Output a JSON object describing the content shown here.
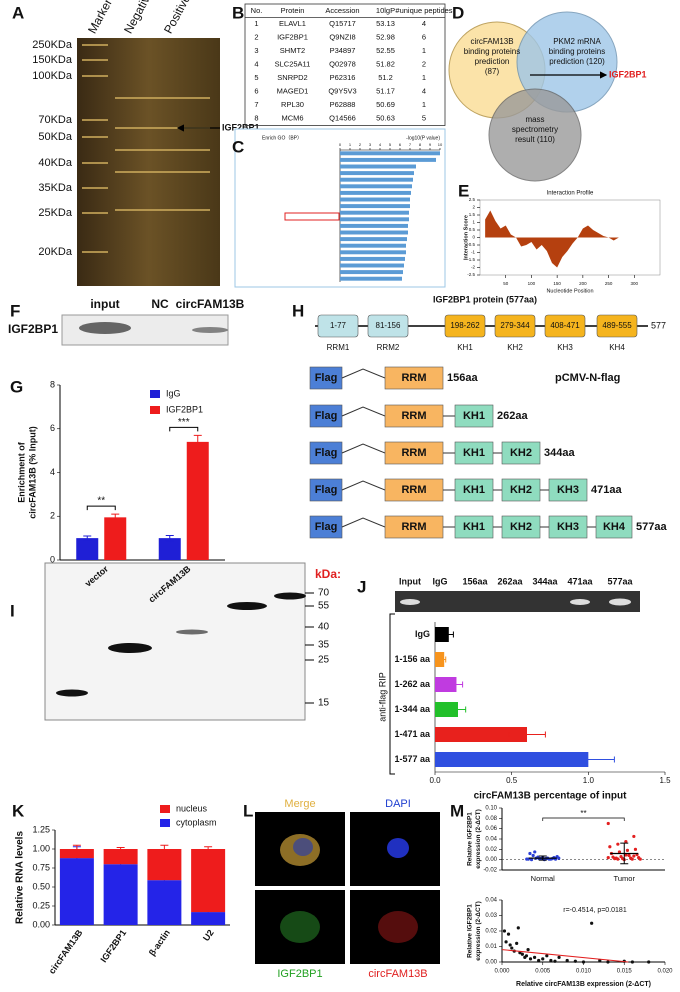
{
  "panel_labels": [
    "A",
    "B",
    "C",
    "D",
    "E",
    "F",
    "G",
    "H",
    "I",
    "J",
    "K",
    "L",
    "M"
  ],
  "gel_a": {
    "lanes": [
      "Marker",
      "Negative",
      "Positive"
    ],
    "markers": [
      "250KDa",
      "150KDa",
      "100KDa",
      "70KDa",
      "50KDa",
      "40KDa",
      "35KDa",
      "25KDa",
      "20KDa"
    ],
    "arrow_label": "IGF2BP1"
  },
  "table_b": {
    "header": [
      "No.",
      "Protein",
      "Accession",
      "10lgP",
      "#unique peptides"
    ],
    "rows": [
      [
        "1",
        "ELAVL1",
        "Q15717",
        "53.13",
        "4"
      ],
      [
        "2",
        "IGF2BP1",
        "Q9NZI8",
        "52.98",
        "6"
      ],
      [
        "3",
        "SHMT2",
        "P34897",
        "52.55",
        "1"
      ],
      [
        "4",
        "SLC25A11",
        "Q02978",
        "51.82",
        "2"
      ],
      [
        "5",
        "SNRPD2",
        "P62316",
        "51.2",
        "1"
      ],
      [
        "6",
        "MAGED1",
        "Q9Y5V3",
        "51.17",
        "4"
      ],
      [
        "7",
        "RPL30",
        "P62888",
        "50.69",
        "1"
      ],
      [
        "8",
        "MCM6",
        "Q14566",
        "50.63",
        "5"
      ]
    ]
  },
  "venn_d": {
    "sets": [
      [
        "circFAM13B",
        "binding proteins",
        "prediction",
        "(87)"
      ],
      [
        "PKM2 mRNA",
        "binding proteins",
        "prediction (120)"
      ],
      [
        "mass",
        "spectrometry",
        "result (110)"
      ]
    ],
    "result": "IGF2BP1"
  },
  "blot_f": {
    "lanes": [
      "input",
      "NC",
      "circFAM13B"
    ],
    "row_label": "IGF2BP1"
  },
  "domains_h": {
    "title": "IGF2BP1 protein (577aa)",
    "domains": [
      {
        "range": "1-77",
        "name": "RRM1"
      },
      {
        "range": "81-156",
        "name": "RRM2"
      },
      {
        "range": "198-262",
        "name": "KH1"
      },
      {
        "range": "279-344",
        "name": "KH2"
      },
      {
        "range": "408-471",
        "name": "KH3"
      },
      {
        "range": "489-555",
        "name": "KH4"
      }
    ],
    "end": "577",
    "vector": "pCMV-N-flag",
    "constructs": [
      {
        "parts": [
          "Flag",
          "RRM"
        ],
        "length": "156aa"
      },
      {
        "parts": [
          "Flag",
          "RRM",
          "KH1"
        ],
        "length": "262aa"
      },
      {
        "parts": [
          "Flag",
          "RRM",
          "KH1",
          "KH2"
        ],
        "length": "344aa"
      },
      {
        "parts": [
          "Flag",
          "RRM",
          "KH1",
          "KH2",
          "KH3"
        ],
        "length": "471aa"
      },
      {
        "parts": [
          "Flag",
          "RRM",
          "KH1",
          "KH2",
          "KH3",
          "KH4"
        ],
        "length": "577aa"
      }
    ]
  },
  "blot_i": {
    "unit": "kDa:",
    "markers": [
      "70",
      "55",
      "40",
      "35",
      "25",
      "15"
    ]
  },
  "gel_j": {
    "lanes": [
      "Input",
      "IgG",
      "156aa",
      "262aa",
      "344aa",
      "471aa",
      "577aa"
    ]
  },
  "images_l": {
    "labels": [
      "Merge",
      "DAPI",
      "IGF2BP1",
      "circFAM13B"
    ]
  },
  "chart_data": [
    {
      "type": "bar",
      "orientation": "horizontal",
      "title": "Enrich GO（BP）",
      "xlabel": "-log10(P value)",
      "categories": [
        null,
        null,
        null,
        null,
        null,
        null,
        null,
        null,
        null,
        null,
        null,
        null,
        null,
        null,
        null,
        null,
        null,
        null,
        null,
        null
      ],
      "values": [
        10,
        9.6,
        7.6,
        7.4,
        7.3,
        7.2,
        7.1,
        7.0,
        7.0,
        6.9,
        6.9,
        6.8,
        6.8,
        6.7,
        6.6,
        6.6,
        6.5,
        6.4,
        6.3,
        6.2
      ],
      "color": "#5b9bd5",
      "xlim": [
        0,
        10
      ],
      "xticks": [
        0,
        1,
        2,
        3,
        4,
        5,
        6,
        7,
        8,
        9,
        10
      ]
    },
    {
      "type": "area",
      "title": "Interaction Profile",
      "xlabel": "Nucleotide Position",
      "ylabel": "Interaction Score",
      "x": [
        10,
        20,
        30,
        40,
        50,
        60,
        70,
        80,
        90,
        100,
        110,
        120,
        130,
        140,
        150,
        160,
        170,
        180,
        190,
        200,
        210,
        220,
        230,
        240,
        250,
        260,
        270
      ],
      "values": [
        1.2,
        1.8,
        1.1,
        0.6,
        0.8,
        0.2,
        0,
        -0.6,
        -0.5,
        -0.3,
        -0.8,
        -0.5,
        -0.9,
        -1.7,
        -2.0,
        -1.3,
        -0.9,
        -0.4,
        0,
        0.6,
        0.8,
        0.5,
        0.3,
        0.1,
        0,
        -0.2,
        0
      ],
      "color": "#b5400f",
      "xlim": [
        0,
        350
      ],
      "xticks": [
        50,
        100,
        150,
        200,
        250,
        300
      ],
      "ylim": [
        -2.5,
        2.5
      ],
      "yticks": [
        -2.5,
        -2,
        -1.5,
        -1,
        -0.5,
        0,
        0.5,
        1,
        1.5,
        2,
        2.5
      ]
    },
    {
      "type": "bar",
      "ylabel": [
        "Enrichment of",
        "circFAM13B (% Input)"
      ],
      "categories": [
        "vector",
        "circFAM13B"
      ],
      "series": [
        {
          "name": "IgG",
          "color": "#1f1fd6",
          "values": [
            1,
            1
          ],
          "errors": [
            0.1,
            0.12
          ]
        },
        {
          "name": "IGF2BP1",
          "color": "#ee1c1c",
          "values": [
            1.95,
            5.4
          ],
          "errors": [
            0.15,
            0.3
          ]
        }
      ],
      "significance": [
        "**",
        "***"
      ],
      "ylim": [
        0,
        8
      ],
      "yticks": [
        0,
        2,
        4,
        6,
        8
      ]
    },
    {
      "type": "bar",
      "orientation": "horizontal",
      "ylabel": "anti-flag RIP",
      "xlabel": "circFAM13B percentage of input",
      "categories": [
        "IgG",
        "1-156 aa",
        "1-262 aa",
        "1-344 aa",
        "1-471 aa",
        "1-577 aa"
      ],
      "values": [
        0.09,
        0.06,
        0.14,
        0.15,
        0.6,
        1.0
      ],
      "errors": [
        0.03,
        0.01,
        0.04,
        0.05,
        0.12,
        0.17
      ],
      "colors": [
        "#000000",
        "#f7941d",
        "#c03be0",
        "#22c02a",
        "#e8211d",
        "#2f4fe0"
      ],
      "xlim": [
        0,
        1.5
      ],
      "xticks": [
        {
          "value": 0,
          "label": "0.0"
        },
        {
          "value": 0.5,
          "label": "0.5"
        },
        {
          "value": 1,
          "label": "1.0"
        },
        {
          "value": 1.5,
          "label": "1.5"
        }
      ]
    },
    {
      "type": "stacked_bar",
      "ylabel": "Relative RNA levels",
      "categories": [
        "circFAM13B",
        "IGF2BP1",
        "β-actin",
        "U2"
      ],
      "series": [
        {
          "name": "cytoplasm",
          "color": "#2424e8",
          "values": [
            0.88,
            0.8,
            0.59,
            0.17
          ],
          "errors": [
            0.15,
            0.1,
            0.02,
            0.03
          ]
        },
        {
          "name": "nucleus",
          "color": "#ee1c1c",
          "values": [
            0.12,
            0.2,
            0.41,
            0.83
          ],
          "errors": [
            0.05,
            0.02,
            0.05,
            0.03
          ]
        }
      ],
      "ylim": [
        0,
        1.25
      ],
      "yticks": [
        {
          "value": 0,
          "label": "0.00"
        },
        {
          "value": 0.25,
          "label": "0.25"
        },
        {
          "value": 0.5,
          "label": "0.50"
        },
        {
          "value": 0.75,
          "label": "0.75"
        },
        {
          "value": 1,
          "label": "1.00"
        },
        {
          "value": 1.25,
          "label": "1.25"
        }
      ]
    },
    {
      "type": "strip",
      "ylabel": [
        "Relative IGF2BP1",
        "expression (2-ΔCT)"
      ],
      "significance": "**",
      "series": [
        {
          "name": "Normal",
          "color": "#2b3fd6",
          "mean": 0.003,
          "sd": 0.004,
          "values": [
            0.001,
            0.002,
            0,
            0.003,
            0.001,
            0.004,
            0.002,
            0.005,
            0.012,
            0.001,
            0.003,
            0.002,
            0,
            0.006,
            0.001,
            0.002,
            0.008,
            0.003,
            0.001,
            0.004,
            0.015
          ]
        },
        {
          "name": "Tumor",
          "color": "#e32020",
          "mean": 0.012,
          "sd": 0.02,
          "values": [
            0.07,
            0.045,
            0.035,
            0.03,
            0.025,
            0.02,
            0.018,
            0.015,
            0.012,
            0.01,
            0.008,
            0.006,
            0.005,
            0.004,
            0.003,
            0.002,
            0.002,
            0.001,
            0.001,
            0,
            0.003,
            0.004,
            0.007,
            0.009,
            0.001
          ]
        }
      ],
      "ylim": [
        -0.02,
        0.1
      ],
      "yticks": [
        {
          "value": -0.02,
          "label": "-0.02"
        },
        {
          "value": 0,
          "label": "0.00"
        },
        {
          "value": 0.02,
          "label": "0.02"
        },
        {
          "value": 0.04,
          "label": "0.04"
        },
        {
          "value": 0.06,
          "label": "0.06"
        },
        {
          "value": 0.08,
          "label": "0.08"
        },
        {
          "value": 0.1,
          "label": "0.10"
        }
      ]
    },
    {
      "type": "scatter",
      "ylabel": [
        "Relative IGF2BP1",
        "expression (2-ΔCT)"
      ],
      "xlabel": "Relative circFAM13B expression (2-ΔCT)",
      "annotation": "r=-0.4514, p=0.0181",
      "color": "#111111",
      "trend_color": "#e32020",
      "x": [
        0.0003,
        0.0005,
        0.0008,
        0.001,
        0.0012,
        0.0015,
        0.0018,
        0.002,
        0.0022,
        0.0025,
        0.0028,
        0.003,
        0.0032,
        0.0035,
        0.004,
        0.0045,
        0.005,
        0.0055,
        0.006,
        0.0065,
        0.007,
        0.008,
        0.009,
        0.01,
        0.011,
        0.012,
        0.013,
        0.015,
        0.016,
        0.018
      ],
      "values": [
        0.02,
        0.013,
        0.018,
        0.011,
        0.009,
        0.007,
        0.012,
        0.022,
        0.006,
        0.005,
        0.003,
        0.004,
        0.008,
        0.002,
        0.003,
        0.001,
        0.002,
        0.004,
        0.001,
        0.0005,
        0.003,
        0.001,
        0.0005,
        0,
        0.025,
        0.001,
        0,
        0.0005,
        0,
        0
      ],
      "trendline": {
        "x": [
          0,
          0.0155
        ],
        "y": [
          0.008,
          0
        ]
      },
      "xlim": [
        0,
        0.02
      ],
      "xticks": [
        {
          "value": 0,
          "label": "0.000"
        },
        {
          "value": 0.005,
          "label": "0.005"
        },
        {
          "value": 0.01,
          "label": "0.010"
        },
        {
          "value": 0.015,
          "label": "0.015"
        },
        {
          "value": 0.02,
          "label": "0.020"
        }
      ],
      "ylim": [
        0,
        0.04
      ],
      "yticks": [
        {
          "value": 0,
          "label": "0.00"
        },
        {
          "value": 0.01,
          "label": "0.01"
        },
        {
          "value": 0.02,
          "label": "0.02"
        },
        {
          "value": 0.03,
          "label": "0.03"
        },
        {
          "value": 0.04,
          "label": "0.04"
        }
      ]
    }
  ]
}
